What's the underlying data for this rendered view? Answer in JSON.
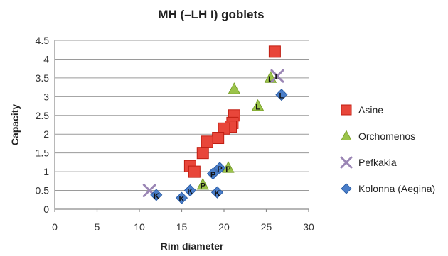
{
  "chart_data": {
    "type": "scatter",
    "title": "MH (–LH I) goblets",
    "xlabel": "Rim diameter",
    "ylabel": "Capacity",
    "xlim": [
      0,
      30
    ],
    "ylim": [
      0,
      4.5
    ],
    "xticks": [
      "0",
      "5",
      "10",
      "15",
      "20",
      "25",
      "30"
    ],
    "yticks": [
      "0",
      "0.5",
      "1",
      "1.5",
      "2",
      "2.5",
      "3",
      "3.5",
      "4",
      "4.5"
    ],
    "grid": "horizontal",
    "legend_position": "right",
    "series": [
      {
        "name": "Asine",
        "marker": "square",
        "color": "#e8463a",
        "points": [
          {
            "x": 26,
            "y": 4.2,
            "label": ""
          },
          {
            "x": 21.2,
            "y": 2.5,
            "label": ""
          },
          {
            "x": 21,
            "y": 2.3,
            "label": ""
          },
          {
            "x": 20.8,
            "y": 2.2,
            "label": ""
          },
          {
            "x": 20,
            "y": 2.15,
            "label": ""
          },
          {
            "x": 19.3,
            "y": 1.9,
            "label": ""
          },
          {
            "x": 18,
            "y": 1.8,
            "label": ""
          },
          {
            "x": 17.5,
            "y": 1.5,
            "label": ""
          },
          {
            "x": 16,
            "y": 1.15,
            "label": ""
          },
          {
            "x": 16.5,
            "y": 1.0,
            "label": ""
          }
        ]
      },
      {
        "name": "Orchomenos",
        "marker": "triangle",
        "color": "#9bc34a",
        "points": [
          {
            "x": 21.2,
            "y": 3.2,
            "label": ""
          },
          {
            "x": 25.5,
            "y": 3.5,
            "label": "L"
          },
          {
            "x": 24,
            "y": 2.75,
            "label": "L"
          },
          {
            "x": 20.5,
            "y": 1.1,
            "label": "P"
          },
          {
            "x": 17.5,
            "y": 0.65,
            "label": "P"
          }
        ]
      },
      {
        "name": "Pefkakia",
        "marker": "x",
        "color": "#9b86b5",
        "points": [
          {
            "x": 26.3,
            "y": 3.55,
            "label": "L"
          },
          {
            "x": 11.2,
            "y": 0.5,
            "label": ""
          }
        ]
      },
      {
        "name": "Kolonna (Aegina)",
        "marker": "diamond",
        "color": "#4a7ec9",
        "points": [
          {
            "x": 26.8,
            "y": 3.05,
            "label": "L"
          },
          {
            "x": 19.5,
            "y": 1.1,
            "label": "P"
          },
          {
            "x": 18.7,
            "y": 0.95,
            "label": "P"
          },
          {
            "x": 19.2,
            "y": 0.45,
            "label": "K"
          },
          {
            "x": 16,
            "y": 0.5,
            "label": "K"
          },
          {
            "x": 15,
            "y": 0.3,
            "label": "K"
          },
          {
            "x": 12,
            "y": 0.38,
            "label": "K"
          }
        ]
      }
    ]
  }
}
